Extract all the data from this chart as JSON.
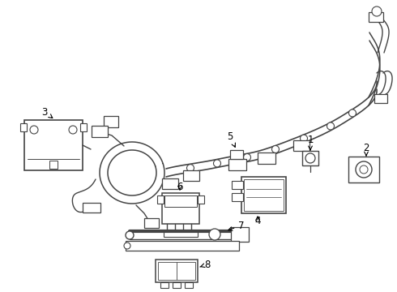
{
  "bg_color": "#ffffff",
  "line_color": "#444444",
  "label_color": "#000000",
  "lw": 1.0
}
